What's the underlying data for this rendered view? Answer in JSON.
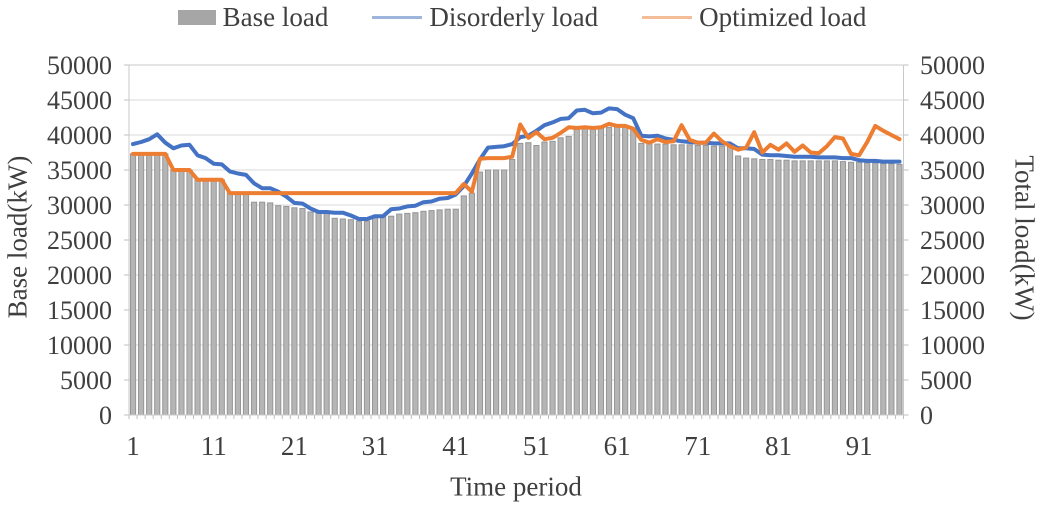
{
  "legend": {
    "items": [
      {
        "label": "Base load",
        "marker": "swatch",
        "color": "#A6A6A6"
      },
      {
        "label": "Disorderly load",
        "marker": "line",
        "color": "#9DB5DB"
      },
      {
        "label": "Optimized load",
        "marker": "line",
        "color": "#F2BD97"
      }
    ]
  },
  "axes": {
    "left": {
      "title": "Base load(kW)",
      "ticks": [
        "0",
        "5000",
        "10000",
        "15000",
        "20000",
        "25000",
        "30000",
        "35000",
        "40000",
        "45000",
        "50000"
      ]
    },
    "right": {
      "title": "Total load(kW)",
      "ticks": [
        "0",
        "5000",
        "10000",
        "15000",
        "20000",
        "25000",
        "30000",
        "35000",
        "40000",
        "45000",
        "50000"
      ]
    },
    "x": {
      "title": "Time period",
      "ticks": [
        "1",
        "11",
        "21",
        "31",
        "41",
        "51",
        "61",
        "71",
        "81",
        "91"
      ]
    }
  },
  "chart_data": {
    "type": "combo",
    "title": "",
    "xlabel": "Time period",
    "x_tick_labels": [
      1,
      11,
      21,
      31,
      41,
      51,
      61,
      71,
      81,
      91
    ],
    "x_range": [
      1,
      96
    ],
    "grid": true,
    "legend_position": "top",
    "y_left": {
      "label": "Base load(kW)",
      "min": 0,
      "max": 50000,
      "step": 5000
    },
    "y_right": {
      "label": "Total load(kW)",
      "min": 0,
      "max": 50000,
      "step": 5000
    },
    "colors": {
      "grid": "#D9D9D9",
      "border": "#C9C9C9",
      "tick": "#BFBFBF",
      "text": "#3f3f3f"
    },
    "series": [
      {
        "name": "Base load",
        "type": "bar",
        "axis": "left",
        "color": "#B5B5B5",
        "border_color": "#969696",
        "values": [
          37300,
          37300,
          37300,
          37300,
          37300,
          35000,
          35000,
          35000,
          33600,
          33600,
          33600,
          33600,
          31700,
          31700,
          31700,
          30400,
          30400,
          30300,
          29900,
          29800,
          29600,
          29500,
          29000,
          28900,
          28900,
          28100,
          28000,
          27900,
          27700,
          27700,
          28200,
          28300,
          28400,
          28700,
          28800,
          28900,
          29100,
          29200,
          29300,
          29400,
          29400,
          31300,
          31700,
          34700,
          35000,
          35000,
          35000,
          36500,
          38800,
          38900,
          38500,
          39000,
          39100,
          39600,
          39800,
          40800,
          40900,
          41000,
          41000,
          41100,
          41200,
          41100,
          41000,
          38800,
          38800,
          38700,
          38700,
          38600,
          38600,
          38600,
          38500,
          38500,
          38400,
          38400,
          38300,
          37000,
          36700,
          36600,
          36500,
          36500,
          36400,
          36400,
          36300,
          36300,
          36300,
          36300,
          36300,
          36300,
          36200,
          36100,
          36100,
          36000,
          36000,
          35900,
          35900,
          35800
        ]
      },
      {
        "name": "Disorderly load",
        "type": "line",
        "axis": "right",
        "color": "#4472C4",
        "values": [
          38700,
          39000,
          39400,
          40100,
          38900,
          38100,
          38500,
          38600,
          37100,
          36700,
          35900,
          35800,
          34800,
          34500,
          34300,
          33100,
          32400,
          32400,
          31900,
          31200,
          30300,
          30200,
          29500,
          29000,
          29000,
          28900,
          28900,
          28500,
          28000,
          28000,
          28400,
          28400,
          29400,
          29500,
          29800,
          29900,
          30400,
          30500,
          30900,
          31000,
          31500,
          32700,
          34500,
          36500,
          38200,
          38300,
          38400,
          38700,
          39700,
          39900,
          40600,
          41400,
          41800,
          42300,
          42400,
          43500,
          43600,
          43100,
          43200,
          43800,
          43700,
          42900,
          42400,
          39900,
          39800,
          39900,
          39500,
          39300,
          39100,
          39000,
          38900,
          38900,
          38800,
          38800,
          38800,
          38100,
          38100,
          38000,
          37200,
          37100,
          37100,
          37000,
          36900,
          36900,
          36900,
          36800,
          36800,
          36800,
          36700,
          36700,
          36400,
          36300,
          36300,
          36200,
          36200,
          36200
        ]
      },
      {
        "name": "Optimized load",
        "type": "line",
        "axis": "right",
        "color": "#ED7D31",
        "values": [
          37300,
          37300,
          37300,
          37300,
          37300,
          35000,
          35000,
          35000,
          33600,
          33600,
          33600,
          33600,
          31700,
          31700,
          31700,
          31700,
          31700,
          31700,
          31700,
          31700,
          31700,
          31700,
          31700,
          31700,
          31700,
          31700,
          31700,
          31700,
          31700,
          31700,
          31700,
          31700,
          31700,
          31700,
          31700,
          31700,
          31700,
          31700,
          31700,
          31700,
          31700,
          33000,
          31900,
          36600,
          36700,
          36700,
          36700,
          36900,
          41500,
          39600,
          40400,
          39400,
          39600,
          40300,
          41100,
          41000,
          41100,
          41000,
          41100,
          41600,
          41300,
          41300,
          40900,
          39300,
          38900,
          39400,
          39000,
          39100,
          41400,
          39300,
          38900,
          38900,
          40200,
          39100,
          38400,
          37900,
          38200,
          40400,
          37500,
          38600,
          37900,
          38800,
          37600,
          38500,
          37500,
          37400,
          38400,
          39700,
          39500,
          37300,
          37100,
          39000,
          41300,
          40600,
          40000,
          39400
        ]
      }
    ]
  }
}
